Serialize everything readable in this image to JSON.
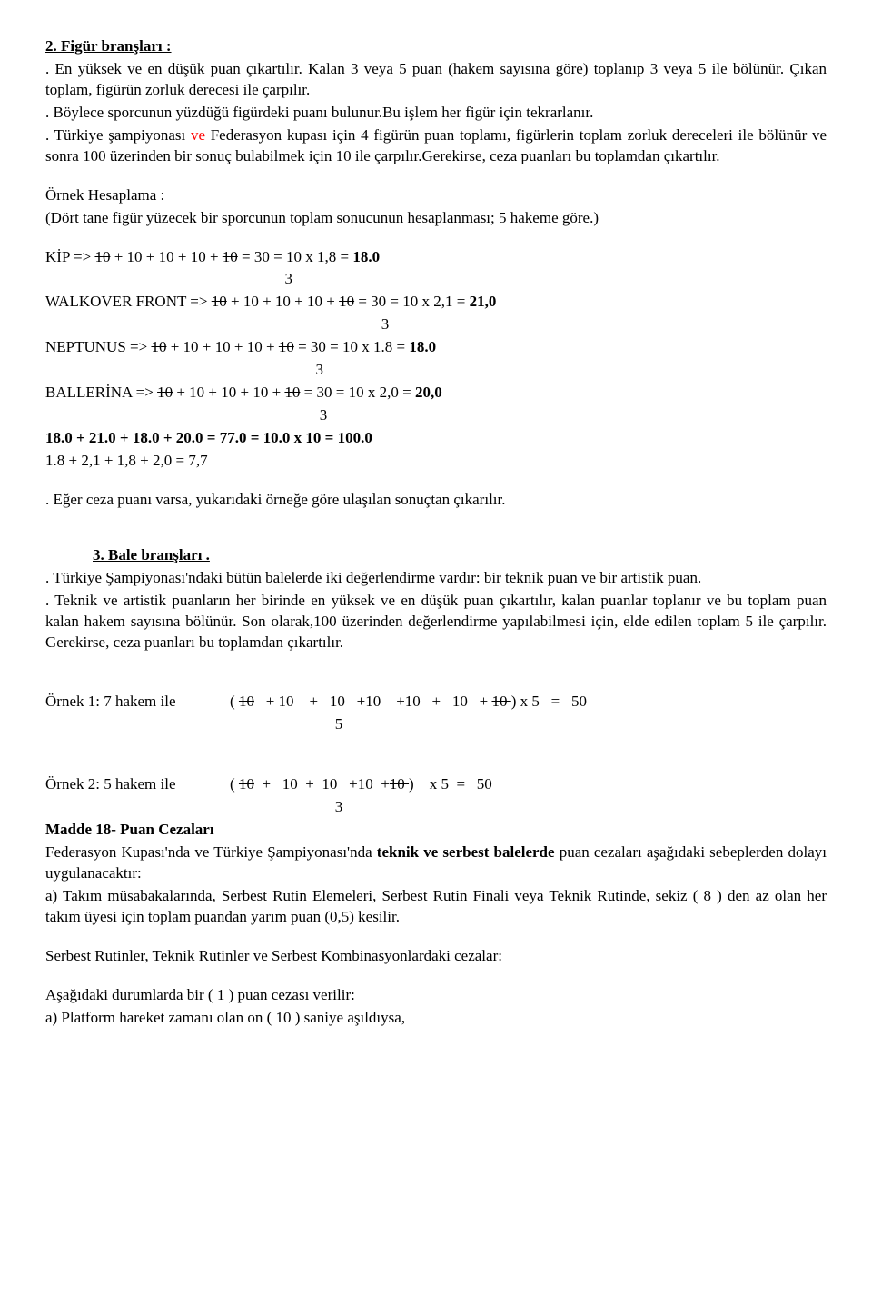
{
  "s1": {
    "title": "2.  Figür branşları :",
    "p1a": ".         En yüksek ve en düşük puan çıkartılır. Kalan 3 veya 5 puan (hakem sayısına göre) toplanıp 3 veya 5 ile bölünür. Çıkan toplam, figürün zorluk derecesi ile çarpılır.",
    "p1b": ".         Böylece sporcunun yüzdüğü figürdeki puanı bulunur.Bu işlem her figür için tekrarlanır.",
    "p1c_pre": ".         Türkiye şampiyonası ",
    "p1c_red": "ve",
    "p1c_post": " Federasyon kupası için 4 figürün puan toplamı, figürlerin toplam zorluk dereceleri ile bölünür ve sonra 100 üzerinden bir sonuç bulabilmek için 10 ile çarpılır.Gerekirse, ceza puanları bu toplamdan çıkartılır.",
    "ornek_h": "Örnek Hesaplama :",
    "ornek_d": "(Dört tane figür yüzecek bir sporcunun toplam sonucunun hesaplanması; 5 hakeme göre.)",
    "kip_label": "KİP => ",
    "kip_s1": "10",
    "kip_mid": " + 10 + 10 + 10 + ",
    "kip_s2": "10",
    "kip_eq": " =   30   = 10 x 1,8 = ",
    "kip_res": "18.0",
    "kip_den": "                                                              3",
    "walk_label": " WALKOVER FRONT => ",
    "walk_s1": "10",
    "walk_mid": " + 10 + 10 + 10 +  ",
    "walk_s2": "10",
    "walk_eq": "  =   30   = 10 x 2,1 = ",
    "walk_res": "21,0",
    "walk_den": "                                                                                       3",
    "nep_label": "NEPTUNUS => ",
    "nep_s1": "10",
    "nep_mid": " + 10 + 10 + 10 +  ",
    "nep_s2": "10",
    "nep_eq": "  =   30   = 10 x 1.8 = ",
    "nep_res": "18.0",
    "nep_den": "                                                                      3",
    "bal_label": "BALLERİNA => ",
    "bal_s1": "10",
    "bal_mid": " + 10 + 10 + 10 +  ",
    "bal_s2": "10",
    "bal_eq": "  =   30   = 10 x 2,0 = ",
    "bal_res": "20,0",
    "bal_den": "                                                                       3",
    "sum1": "18.0 + 21.0 + 18.0 + 20.0   =   77.0   =  10.0 x 10 = 100.0",
    "sum2": "1.8 + 2,1 + 1,8 + 2,0         =    7,7",
    "note": ".         Eğer ceza puanı varsa, yukarıdaki örneğe göre ulaşılan sonuçtan çıkarılır."
  },
  "s2": {
    "title": "3.  Bale branşları .",
    "p1": ".    Türkiye Şampiyonası'ndaki bütün balelerde iki değerlendirme vardır: bir teknik puan ve bir artistik puan.",
    "p2": ".    Teknik ve artistik puanların her birinde en yüksek ve en düşük puan çıkartılır, kalan puanlar toplanır ve bu toplam puan kalan hakem sayısına bölünür. Son olarak,100 üzerinden değerlendirme yapılabilmesi için, elde edilen toplam 5 ile çarpılır. Gerekirse, ceza puanları bu toplamdan çıkartılır.",
    "ex1_label": "Örnek 1: 7 hakem ile              ( ",
    "ex1_s1": "10",
    "ex1_mid": "   + 10    +   10   +10    +10   +   10   + ",
    "ex1_s2": "10 ",
    "ex1_end": ") x 5   =   50",
    "ex1_den": "                                                                           5",
    "ex2_label": "Örnek 2: 5 hakem ile              ( ",
    "ex2_s1": "10",
    "ex2_mid": "  +   10  +  10   +10  +",
    "ex2_s2": "10 ",
    "ex2_end": ")    x 5  =   50",
    "ex2_den": "                                                                           3",
    "m18_title": "Madde 18- Puan Cezaları",
    "m18_p1a": "Federasyon Kupası'nda ve Türkiye Şampiyonası'nda ",
    "m18_p1b": "teknik ve serbest balelerde",
    "m18_p1c": " puan cezaları aşağıdaki sebeplerden dolayı uygulanacaktır:",
    "m18_a": "a) Takım müsabakalarında, Serbest Rutin Elemeleri, Serbest Rutin Finali veya Teknik Rutinde, sekiz ( 8 ) den az olan her takım üyesi için toplam puandan yarım puan (0,5) kesilir.",
    "sr": "Serbest Rutinler, Teknik Rutinler ve Serbest Kombinasyonlardaki cezalar:",
    "asag": "Aşağıdaki durumlarda bir ( 1 ) puan cezası verilir:",
    "asag_a": "a) Platform hareket zamanı olan on ( 10 ) saniye aşıldıysa,"
  },
  "colors": {
    "red": "#ff0000"
  }
}
